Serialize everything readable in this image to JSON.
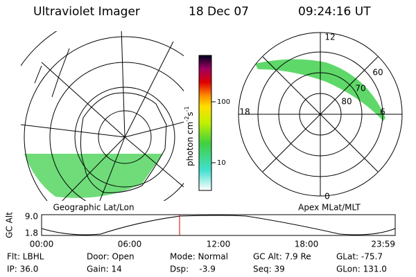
{
  "header": {
    "title": "Ultraviolet Imager",
    "date": "18 Dec 07",
    "time": "09:24:16 UT"
  },
  "colorbar": {
    "ticks": [
      "100",
      "10"
    ],
    "label": {
      "base": "photon cm",
      "exp1": "-2",
      "mid": "s",
      "exp2": "-1"
    }
  },
  "left_panel": {
    "caption": "Geographic Lat/Lon"
  },
  "right_panel": {
    "caption": "Apex MLat/MLT",
    "mlt_labels": [
      "12",
      "18",
      "6",
      "0"
    ],
    "lat_labels": [
      "60",
      "70",
      "80"
    ]
  },
  "gc_alt_plot": {
    "ylabel": "GC Alt",
    "yticks": [
      "9.0",
      "1.8"
    ],
    "xticks": [
      "00:00",
      "06:00",
      "12:00",
      "18:00",
      "23:59"
    ]
  },
  "footer": {
    "rows": [
      [
        "Flt: LBHL",
        "Door: Open",
        "Mode: Normal",
        "GC Alt: 7.9 Re",
        "GLat: -75.7"
      ],
      [
        "IP: 36.0",
        "Gain: 14",
        "Dsp:    -3.9",
        "Seq: 39",
        "GLon: 131.0"
      ]
    ]
  }
}
